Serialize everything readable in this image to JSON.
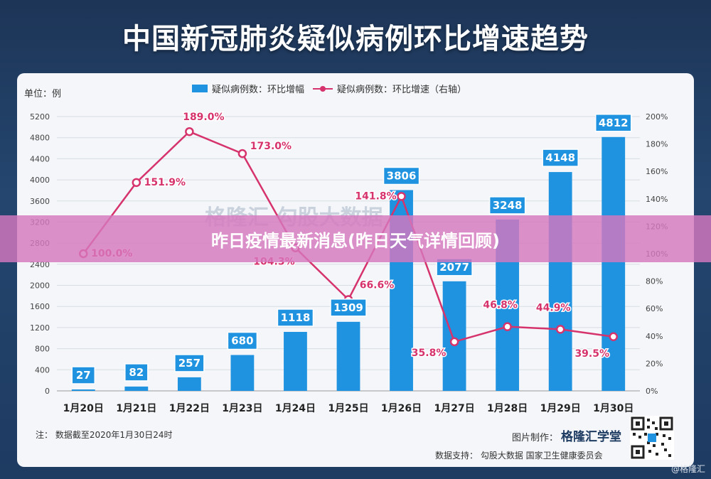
{
  "title": "中国新冠肺炎疑似病例环比增速趋势",
  "unit_label": "单位：例",
  "legend": {
    "bar_label": "疑似病例数：环比增幅",
    "line_label": "疑似病例数：环比增速（右轴）"
  },
  "note": "注： 数据截至2020年1月30日24时",
  "credit": {
    "maker_label": "图片制作：",
    "maker_brand": "格隆汇学堂",
    "source": "数据支持： 勾股大数据 国家卫生健康委员会"
  },
  "watermark": "格隆汇  勾股大数据",
  "banner": "昨日疫情最新消息(昨日天气详情回顾)",
  "corner_mark": "@格隆汇",
  "colors": {
    "bar": "#1f93e0",
    "line": "#d6336c",
    "banner": "#d678be"
  },
  "chart_data": {
    "type": "bar",
    "categories": [
      "1月20日",
      "1月21日",
      "1月22日",
      "1月23日",
      "1月24日",
      "1月25日",
      "1月26日",
      "1月27日",
      "1月28日",
      "1月29日",
      "1月30日"
    ],
    "series": [
      {
        "name": "疑似病例数：环比增幅",
        "type": "bar",
        "axis": "left",
        "values": [
          27,
          82,
          257,
          680,
          1118,
          1309,
          3806,
          2077,
          3248,
          4148,
          4812
        ],
        "labels": [
          "27",
          "82",
          "257",
          "680",
          "1118",
          "1309",
          "3806",
          "2077",
          "3248",
          "4148",
          "4812"
        ]
      },
      {
        "name": "疑似病例数：环比增速（右轴）",
        "type": "line",
        "axis": "right",
        "values": [
          100.0,
          151.9,
          189.0,
          173.0,
          104.3,
          66.6,
          141.8,
          35.8,
          46.8,
          44.9,
          39.5
        ],
        "labels": [
          "100.0%",
          "151.9%",
          "189.0%",
          "173.0%",
          "104.3%",
          "66.6%",
          "141.8%",
          "35.8%",
          "46.8%",
          "44.9%",
          "39.5%"
        ]
      }
    ],
    "ylim": [
      0,
      5200
    ],
    "y_ticks": [
      "0",
      "400",
      "800",
      "1200",
      "1600",
      "2000",
      "2400",
      "2800",
      "3200",
      "3600",
      "4000",
      "4400",
      "4800",
      "5200"
    ],
    "y2lim": [
      0,
      200
    ],
    "y2_ticks": [
      "0%",
      "20%",
      "40%",
      "60%",
      "80%",
      "100%",
      "120%",
      "140%",
      "160%",
      "180%",
      "200%"
    ],
    "grid": true,
    "legend_position": "top"
  }
}
